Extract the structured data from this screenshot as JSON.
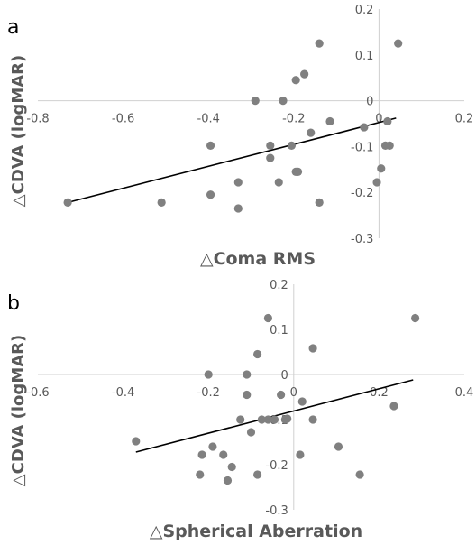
{
  "chart_data": [
    {
      "type": "scatter",
      "panel_label": "a",
      "xlabel": "△Coma RMS",
      "ylabel": "△CDVA (logMAR)",
      "xlim": [
        -0.8,
        0.2
      ],
      "ylim": [
        -0.3,
        0.2
      ],
      "xticks": [
        -0.8,
        -0.6,
        -0.4,
        -0.2,
        0,
        0.2
      ],
      "yticks": [
        0.2,
        0.1,
        0,
        -0.1,
        -0.2,
        -0.3
      ],
      "xtick_labels": [
        "-0.8",
        "-0.6",
        "-0.4",
        "-0.2",
        "0",
        "0.2"
      ],
      "ytick_labels": [
        "0.2",
        "0.1",
        "0",
        "-0.1",
        "-0.2",
        "-0.3"
      ],
      "grid": false,
      "legend": "none",
      "marker_color": "#808080",
      "line_color": "#000000",
      "points": [
        [
          -0.73,
          -0.222
        ],
        [
          -0.51,
          -0.222
        ],
        [
          -0.395,
          -0.205
        ],
        [
          -0.395,
          -0.098
        ],
        [
          -0.33,
          -0.235
        ],
        [
          -0.33,
          -0.178
        ],
        [
          -0.29,
          0.0
        ],
        [
          -0.255,
          -0.125
        ],
        [
          -0.255,
          -0.098
        ],
        [
          -0.235,
          -0.178
        ],
        [
          -0.225,
          0.0
        ],
        [
          -0.205,
          -0.098
        ],
        [
          -0.195,
          -0.155
        ],
        [
          -0.19,
          -0.155
        ],
        [
          -0.195,
          0.045
        ],
        [
          -0.175,
          0.058
        ],
        [
          -0.16,
          -0.07
        ],
        [
          -0.14,
          -0.222
        ],
        [
          -0.14,
          0.125
        ],
        [
          -0.115,
          -0.045
        ],
        [
          -0.035,
          -0.058
        ],
        [
          -0.005,
          -0.178
        ],
        [
          0.005,
          -0.148
        ],
        [
          0.015,
          -0.098
        ],
        [
          0.025,
          -0.098
        ],
        [
          0.02,
          -0.045
        ],
        [
          0.045,
          0.125
        ]
      ],
      "trendline": [
        [
          -0.73,
          -0.222
        ],
        [
          0.04,
          -0.038
        ]
      ]
    },
    {
      "type": "scatter",
      "panel_label": "b",
      "xlabel": "△Spherical Aberration",
      "ylabel": "△CDVA (logMAR)",
      "xlim": [
        -0.6,
        0.4
      ],
      "ylim": [
        -0.3,
        0.2
      ],
      "xticks": [
        -0.6,
        -0.4,
        -0.2,
        0,
        0.2,
        0.4
      ],
      "yticks": [
        0.2,
        0.1,
        0,
        -0.1,
        -0.2,
        -0.3
      ],
      "xtick_labels": [
        "-0.6",
        "-0.4",
        "-0.2",
        "0",
        "0.2",
        "0.4"
      ],
      "ytick_labels": [
        "0.2",
        "0.1",
        "0",
        "-0.1",
        "-0.2",
        "-0.3"
      ],
      "grid": false,
      "legend": "none",
      "marker_color": "#808080",
      "line_color": "#000000",
      "points": [
        [
          -0.37,
          -0.148
        ],
        [
          -0.22,
          -0.222
        ],
        [
          -0.215,
          -0.178
        ],
        [
          -0.2,
          0.0
        ],
        [
          -0.19,
          -0.16
        ],
        [
          -0.165,
          -0.178
        ],
        [
          -0.155,
          -0.235
        ],
        [
          -0.145,
          -0.205
        ],
        [
          -0.125,
          -0.1
        ],
        [
          -0.11,
          -0.045
        ],
        [
          -0.11,
          0.0
        ],
        [
          -0.1,
          -0.128
        ],
        [
          -0.085,
          0.045
        ],
        [
          -0.085,
          -0.222
        ],
        [
          -0.075,
          -0.1
        ],
        [
          -0.06,
          -0.1
        ],
        [
          -0.06,
          0.125
        ],
        [
          -0.045,
          -0.1
        ],
        [
          -0.03,
          -0.045
        ],
        [
          -0.02,
          -0.1
        ],
        [
          -0.015,
          -0.098
        ],
        [
          0.015,
          -0.178
        ],
        [
          0.02,
          -0.06
        ],
        [
          0.045,
          0.058
        ],
        [
          0.045,
          -0.1
        ],
        [
          0.105,
          -0.16
        ],
        [
          0.155,
          -0.222
        ],
        [
          0.235,
          -0.07
        ],
        [
          0.285,
          0.125
        ]
      ],
      "trendline": [
        [
          -0.37,
          -0.172
        ],
        [
          0.28,
          -0.012
        ]
      ]
    }
  ]
}
